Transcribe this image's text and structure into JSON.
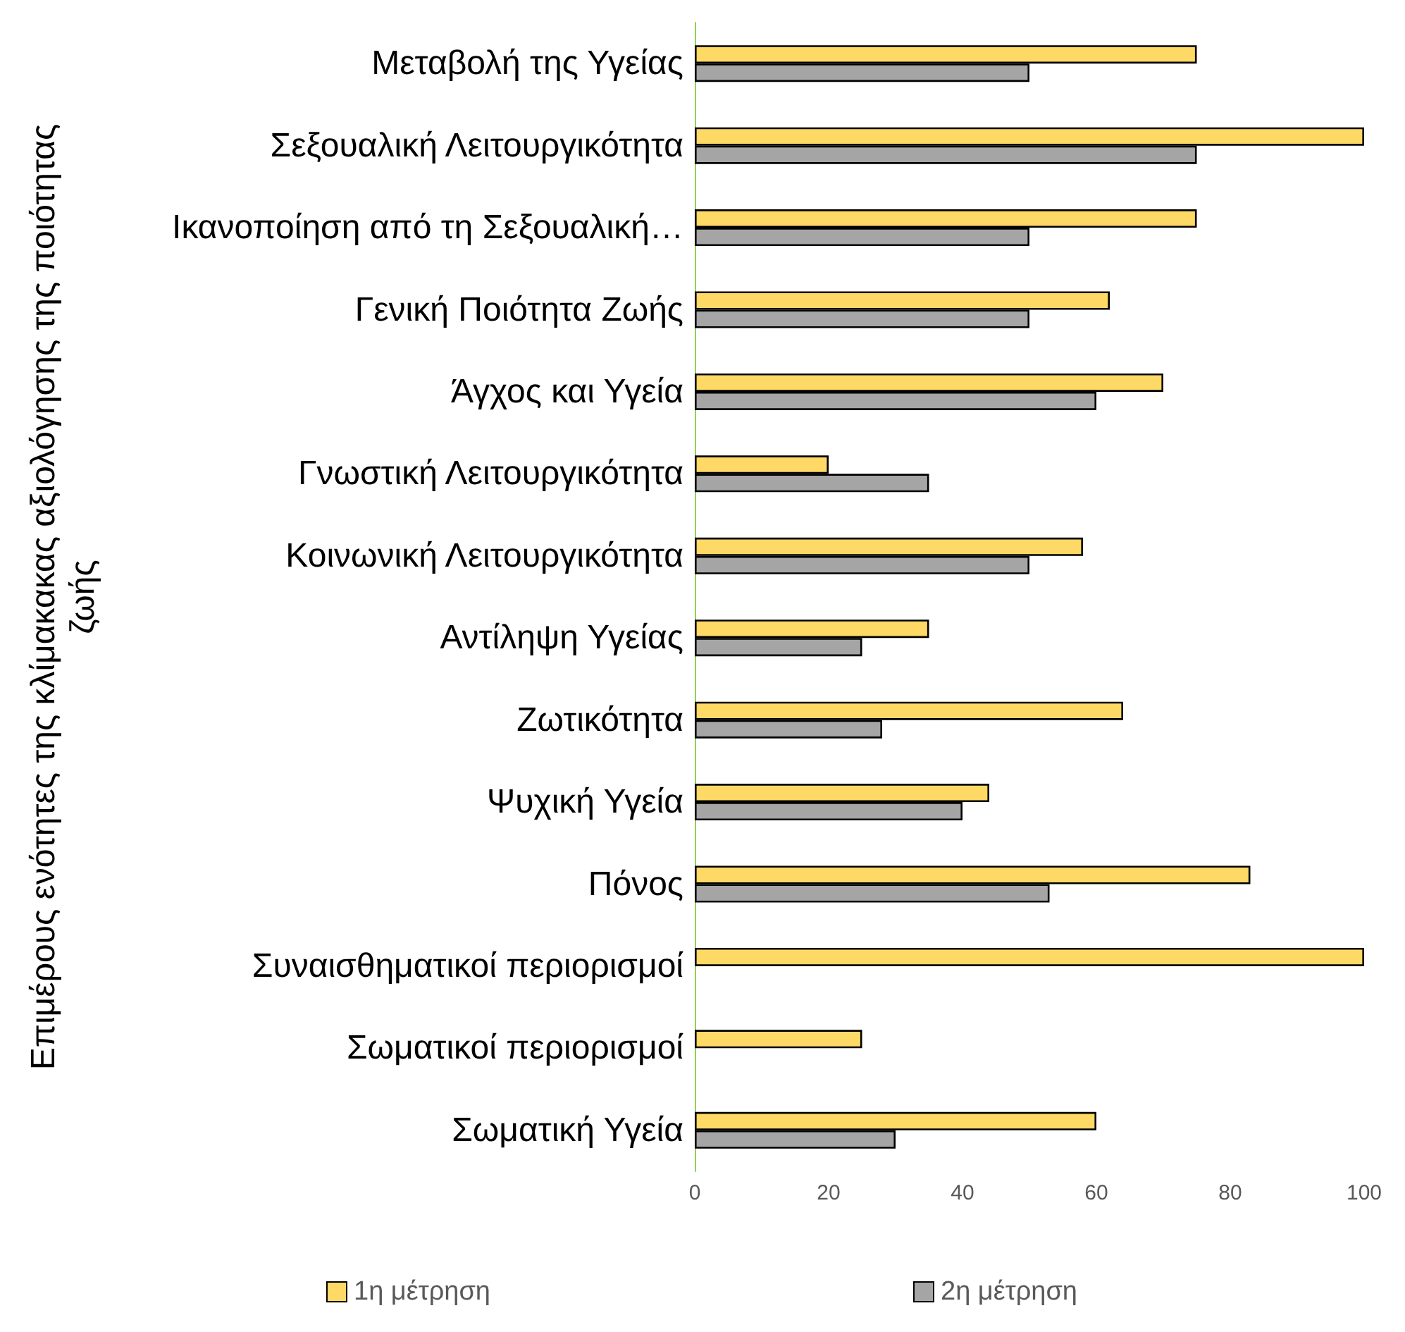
{
  "chart_data": {
    "type": "bar",
    "orientation": "horizontal",
    "ylabel": "Επιμέρους ενότητες της κλίμακακας αξιολόγησης της ποιότητας ζωής",
    "categories": [
      "Μεταβολή της Υγείας",
      "Σεξουαλική Λειτουργικότητα",
      "Ικανοποίηση από τη Σεξουαλική…",
      "Γενική Ποιότητα Ζωής",
      "Άγχος και Υγεία",
      "Γνωστική Λειτουργικότητα",
      "Κοινωνική Λειτουργικότητα",
      "Αντίληψη Υγείας",
      "Ζωτικότητα",
      "Ψυχική Υγεία",
      "Πόνος",
      "Συναισθηματικοί περιορισμοί",
      "Σωματικοί περιορισμοί",
      "Σωματική Υγεία"
    ],
    "series": [
      {
        "name": "1η μέτρηση",
        "color": "#ffd966",
        "values": [
          75,
          100,
          75,
          62,
          70,
          20,
          58,
          35,
          64,
          44,
          83,
          100,
          25,
          60
        ]
      },
      {
        "name": "2η μέτρηση",
        "color": "#a5a5a5",
        "values": [
          50,
          75,
          50,
          50,
          60,
          35,
          50,
          25,
          28,
          40,
          53,
          null,
          null,
          30
        ]
      }
    ],
    "xlim": [
      0,
      100
    ],
    "xticks": [
      0,
      20,
      40,
      60,
      80,
      100
    ],
    "grid": false,
    "legend": "bottom"
  }
}
